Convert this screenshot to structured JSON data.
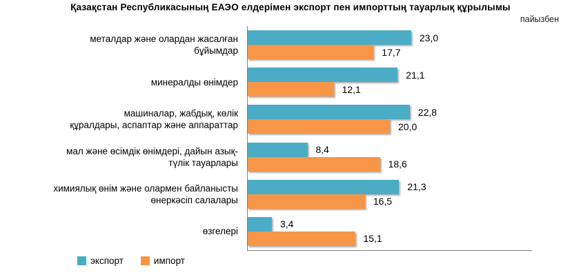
{
  "title": "Қазақстан Республикасының ЕАЭО елдерімен экспорт пен импорттың тауарлық құрылымы",
  "subtitle": "пайызбен",
  "colors": {
    "export_series": "#4BACC6",
    "import_series": "#F79646",
    "axis_line": "#808080",
    "text": "#000000",
    "background": "#FFFFFF"
  },
  "legend": {
    "position": "bottom-left",
    "items": [
      {
        "label": "экспорт",
        "color": "#4BACC6"
      },
      {
        "label": "импорт",
        "color": "#F79646"
      }
    ]
  },
  "chart_data": {
    "type": "bar",
    "orientation": "horizontal",
    "title": "Қазақстан Республикасының ЕАЭО елдерімен экспорт пен импорттың тауарлық құрылымы",
    "subtitle": "пайызбен",
    "unit": "percent",
    "decimal_separator": ",",
    "categories": [
      "металдар және олардан жасалған\nбұйымдар",
      "минералды өнімдер",
      "машиналар, жабдық, көлік\nқұралдары, аспаптар және аппараттар",
      "мал және өсімдік өнімдері, дайын азық-\nтүлік тауарлары",
      "химиялық өнім және олармен байланысты\nөнеркәсіп салалары",
      "өзгелері"
    ],
    "series": [
      {
        "id": "export",
        "name": "экспорт",
        "color": "#4BACC6",
        "values": [
          23.0,
          21.1,
          22.8,
          8.4,
          21.3,
          3.4
        ],
        "labels": [
          "23,0",
          "21,1",
          "22,8",
          "8,4",
          "21,3",
          "3,4"
        ]
      },
      {
        "id": "import",
        "name": "импорт",
        "color": "#F79646",
        "values": [
          17.7,
          12.1,
          20.0,
          18.6,
          16.5,
          15.1
        ],
        "labels": [
          "17,7",
          "12,1",
          "20,0",
          "18,6",
          "16,5",
          "15,1"
        ]
      }
    ],
    "xlim": [
      0,
      40
    ],
    "grid": false,
    "data_labels": true,
    "axis_lines": [
      "left",
      "bottom"
    ],
    "legend_position": "bottom-left"
  }
}
